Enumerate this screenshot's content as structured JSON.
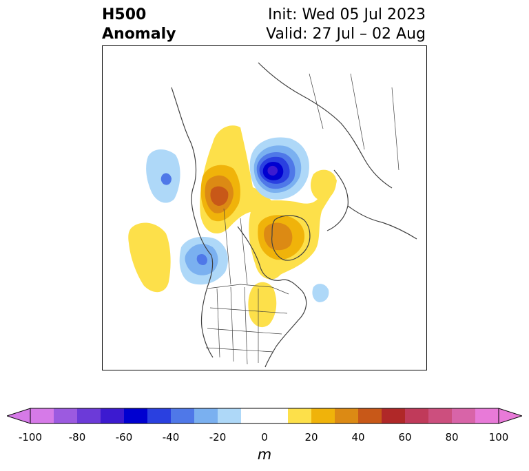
{
  "title": {
    "left_line1": "H500",
    "left_line2": "Anomaly",
    "right_line1": "Init: Wed 05 Jul 2023",
    "right_line2": "Valid: 27 Jul – 02 Aug"
  },
  "map": {
    "projection": "polar-stereographic",
    "region": "North America / Arctic"
  },
  "colorbar": {
    "unit": "m",
    "ticks": [
      "-100",
      "-80",
      "-60",
      "-40",
      "-20",
      "0",
      "20",
      "40",
      "60",
      "80",
      "100"
    ],
    "range": [
      -100,
      100
    ],
    "step": 10,
    "extend": "both",
    "colors": [
      "#d67ae8",
      "#9c5ae0",
      "#6c3ad8",
      "#3c1ad0",
      "#0000d0",
      "#2a40e0",
      "#4f78e8",
      "#7ab0f0",
      "#aed8f8",
      "#ffffff",
      "#ffffff",
      "#fde04a",
      "#f0b30a",
      "#dc8a14",
      "#c85818",
      "#b02828",
      "#c03a5a",
      "#cc4f7e",
      "#d864a8",
      "#e87ad8"
    ]
  }
}
